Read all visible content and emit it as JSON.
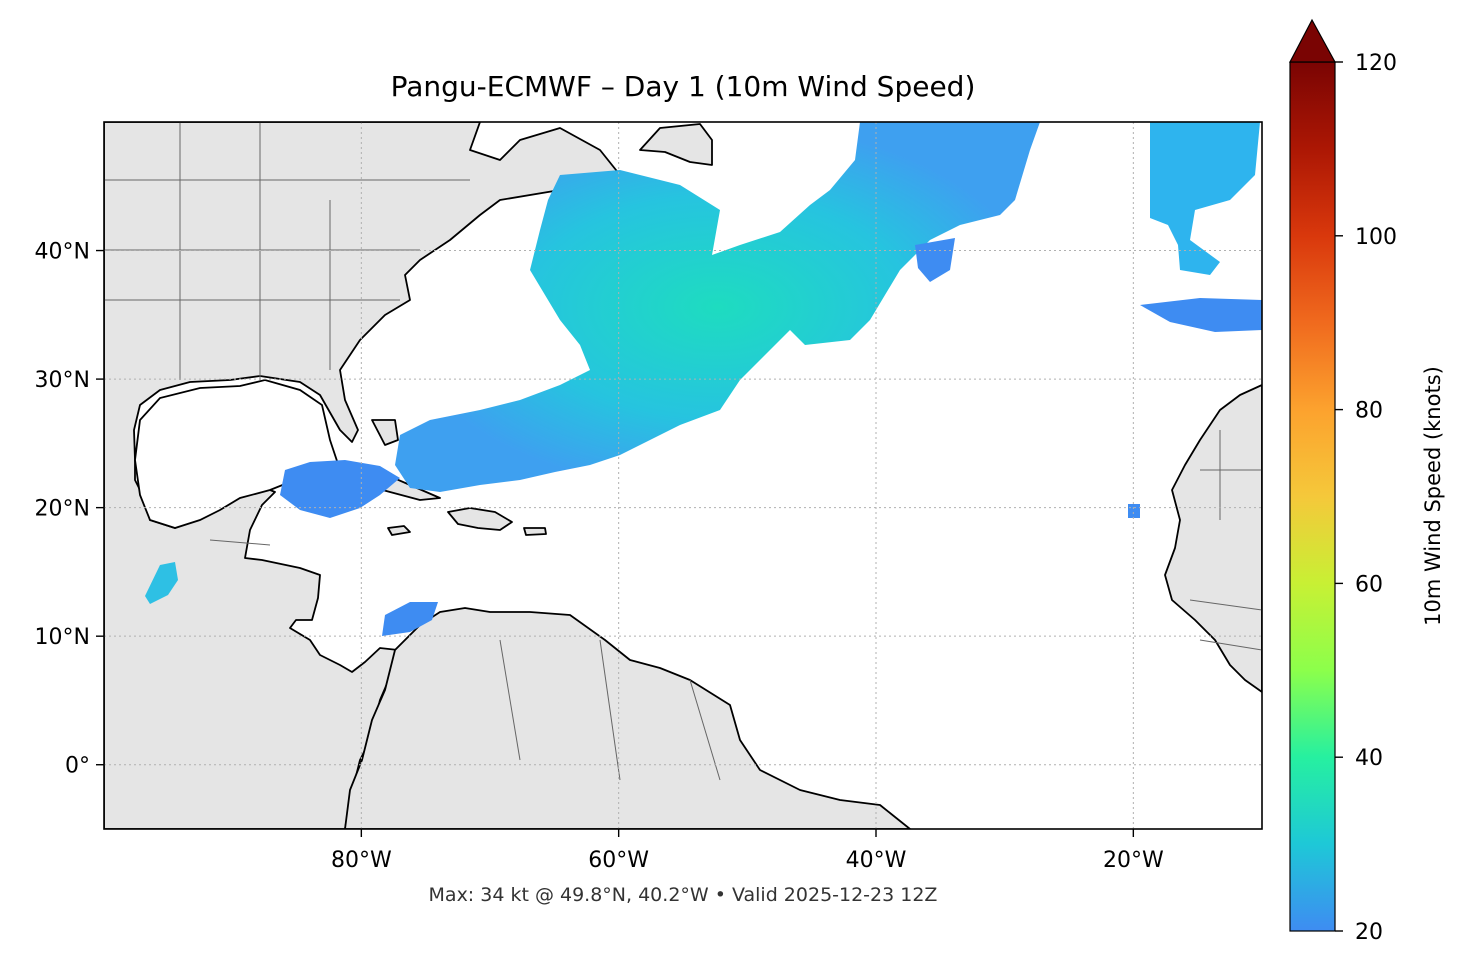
{
  "title": "Pangu-ECMWF – Day 1 (10m Wind Speed)",
  "footer": "Max: 34 kt @ 49.8°N, 40.2°W • Valid 2025-12-23 12Z",
  "map": {
    "lon_range": [
      -100,
      -10
    ],
    "lat_range": [
      -5,
      50
    ],
    "lon_ticks": [
      {
        "value": -80,
        "label": "80°W"
      },
      {
        "value": -60,
        "label": "60°W"
      },
      {
        "value": -40,
        "label": "40°W"
      },
      {
        "value": -20,
        "label": "20°W"
      }
    ],
    "lat_ticks": [
      {
        "value": 40,
        "label": "40°N"
      },
      {
        "value": 30,
        "label": "30°N"
      },
      {
        "value": 20,
        "label": "20°N"
      },
      {
        "value": 10,
        "label": "10°N"
      },
      {
        "value": 0,
        "label": "0°"
      }
    ],
    "gridlines": "dotted",
    "land_color": "#e5e5e5",
    "coast_color": "#000000",
    "border_color": "#666666",
    "max_point": {
      "lat": 49.8,
      "lon": -40.2,
      "value_kt": 34
    }
  },
  "colorbar": {
    "label": "10m Wind Speed (knots)",
    "min": 20,
    "max": 120,
    "ticks": [
      20,
      40,
      60,
      80,
      100,
      120
    ],
    "extend": "max",
    "colormap": "turbo",
    "colors": [
      "#3e8cf2",
      "#1ec8d7",
      "#26f0a0",
      "#8cff4b",
      "#c8f034",
      "#f5c83a",
      "#fca22e",
      "#f06a1e",
      "#d9380c",
      "#ac1704",
      "#7a0403"
    ]
  }
}
